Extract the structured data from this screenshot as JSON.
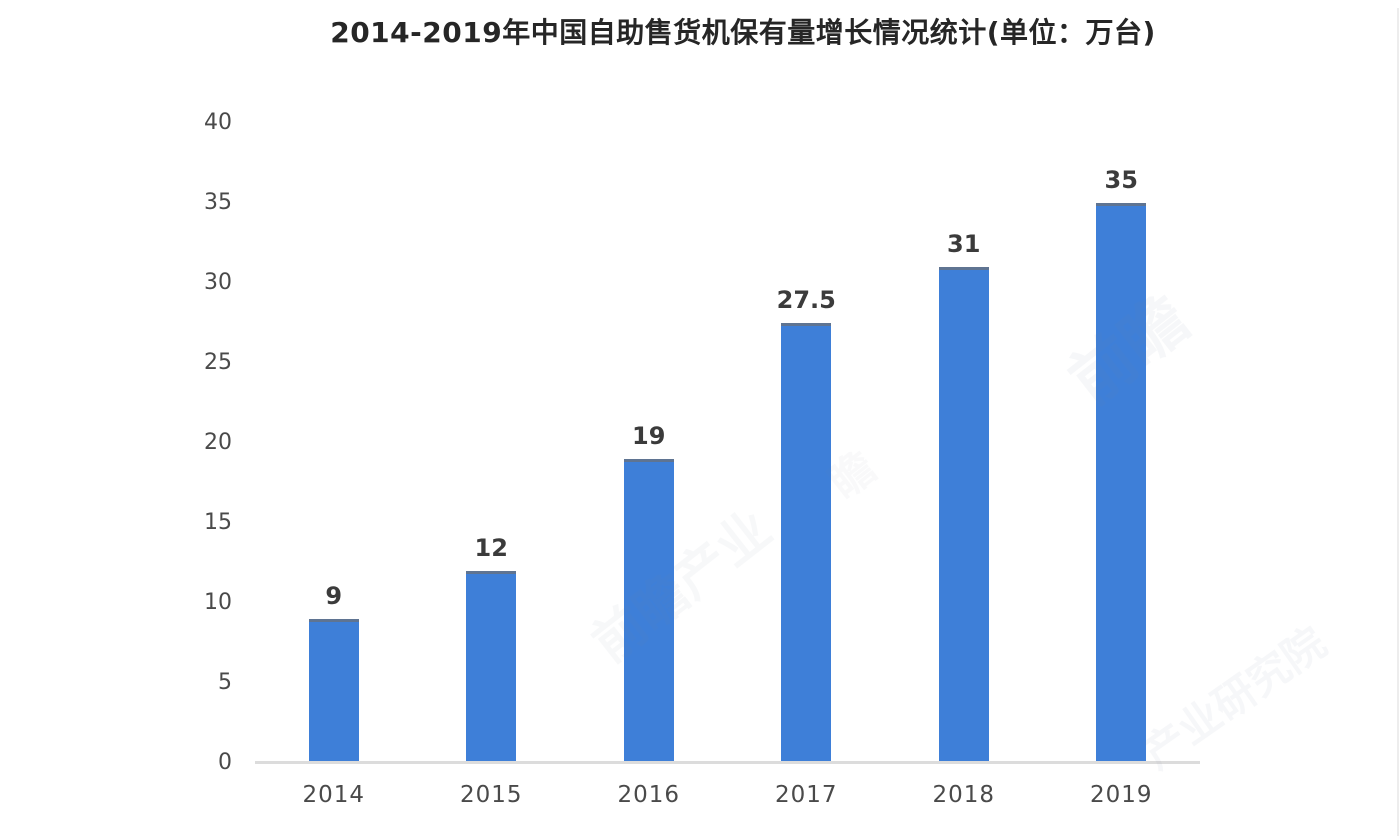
{
  "page": {
    "background": "#ffffff"
  },
  "chart_data": {
    "type": "bar",
    "title": "2014-2019年中国自助售货机保有量增长情况统计(单位：万台)",
    "categories": [
      "2014",
      "2015",
      "2016",
      "2017",
      "2018",
      "2019"
    ],
    "values": [
      9,
      12,
      19,
      27.5,
      31,
      35
    ],
    "value_labels": [
      "9",
      "12",
      "19",
      "27.5",
      "31",
      "35"
    ],
    "xlabel": "",
    "ylabel": "",
    "y_ticks": [
      0,
      5,
      10,
      15,
      20,
      25,
      30,
      35,
      40
    ],
    "ylim": [
      0,
      40
    ],
    "grid": false,
    "legend": "none",
    "colors": {
      "bar": "#3e7fd8",
      "bar_top_edge": "#5f7492",
      "title_text": "#262626",
      "value_label_text": "#3b3b3b",
      "tick_text": "#4a4a4a",
      "axis_line": "#dcdcdc"
    }
  },
  "watermark": {
    "fragments": [
      "前瞻",
      "前瞻产业",
      "产业研究院",
      "瞻"
    ]
  }
}
